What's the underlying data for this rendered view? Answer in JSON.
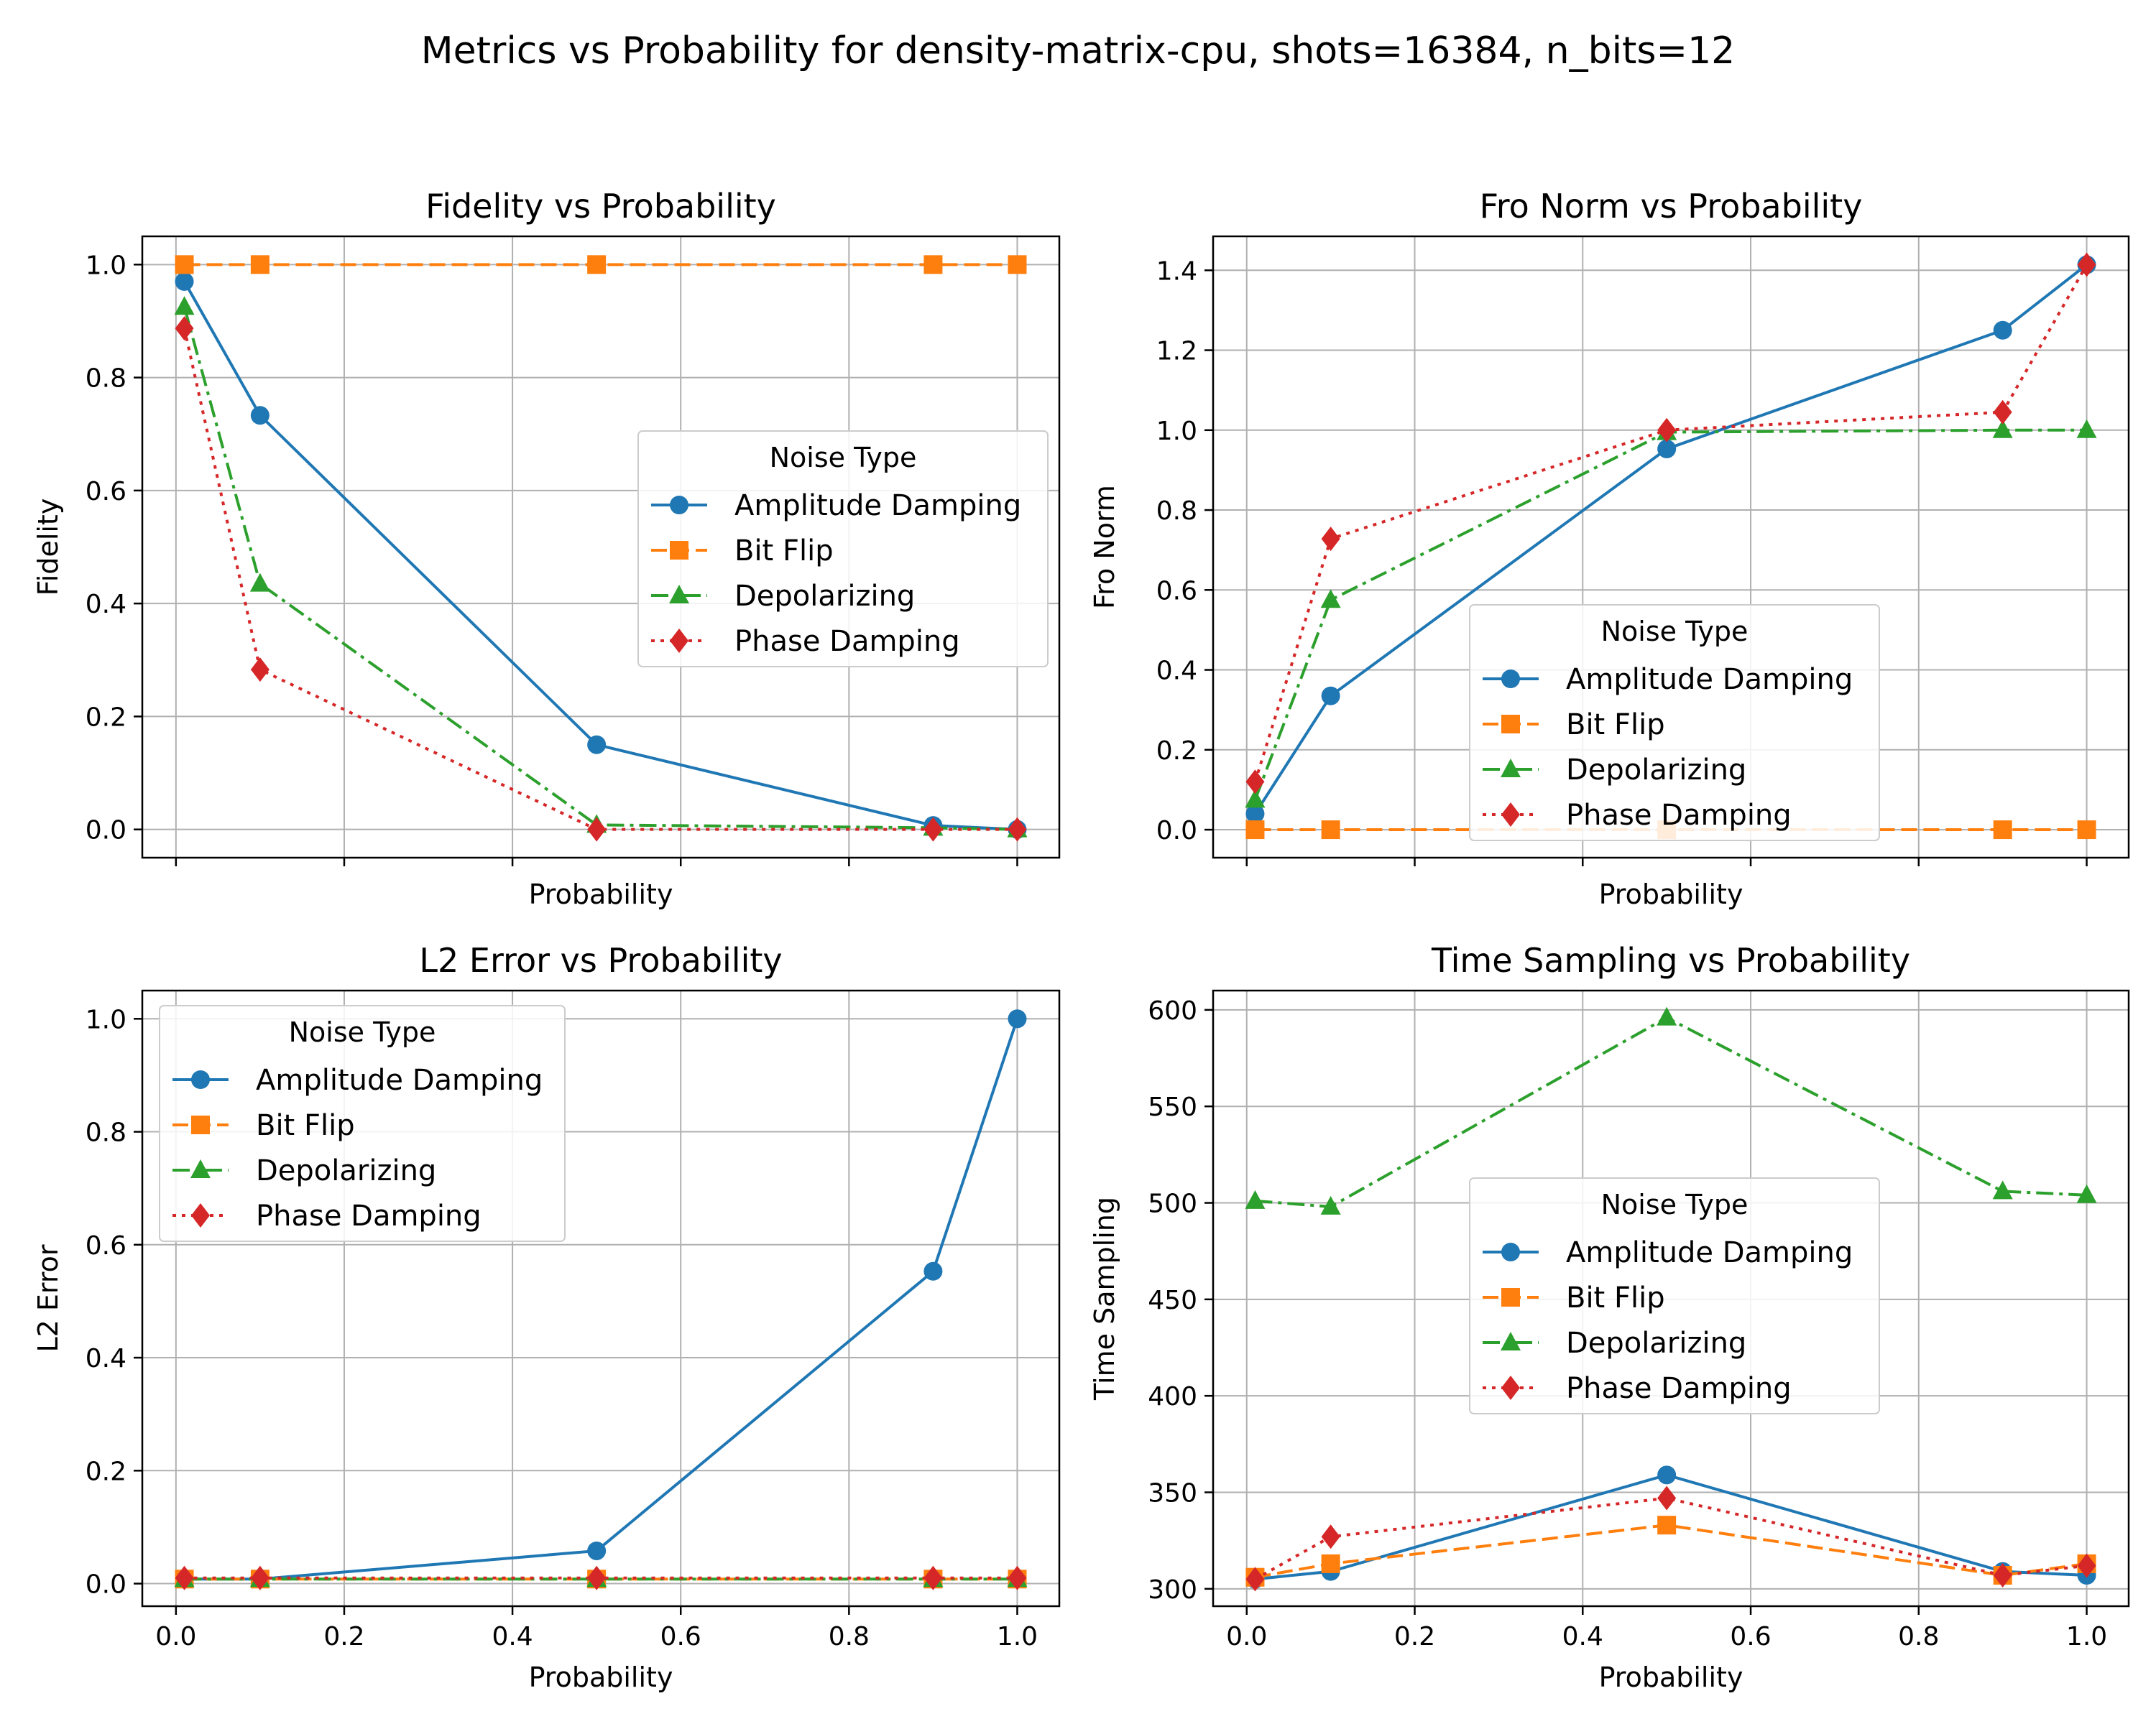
{
  "figure": {
    "suptitle": "Metrics vs Probability for density-matrix-cpu, shots=16384, n_bits=12"
  },
  "series_styles": {
    "Amplitude Damping": {
      "color": "#1f77b4",
      "marker": "circle",
      "dash": "solid"
    },
    "Bit Flip": {
      "color": "#ff7f0e",
      "marker": "square",
      "dash": "dashed"
    },
    "Depolarizing": {
      "color": "#2ca02c",
      "marker": "triangle",
      "dash": "dashdot"
    },
    "Phase Damping": {
      "color": "#d62728",
      "marker": "diamond",
      "dash": "dotted"
    }
  },
  "chart_data": [
    {
      "type": "line",
      "title": "Fidelity vs Probability",
      "xlabel": "Probability",
      "ylabel": "Fidelity",
      "xlim": [
        -0.04,
        1.05
      ],
      "ylim": [
        -0.05,
        1.05
      ],
      "xticks": [
        0.0,
        0.2,
        0.4,
        0.6,
        0.8,
        1.0
      ],
      "yticks": [
        0.0,
        0.2,
        0.4,
        0.6,
        0.8,
        1.0
      ],
      "xtick_labels_visible": false,
      "grid": true,
      "legend": {
        "title": "Noise Type",
        "placement": "center-right"
      },
      "x": [
        0.01,
        0.1,
        0.5,
        0.9,
        1.0
      ],
      "series": [
        {
          "name": "Amplitude Damping",
          "values": [
            0.97,
            0.733,
            0.15,
            0.007,
            0.0
          ]
        },
        {
          "name": "Bit Flip",
          "values": [
            1.0,
            1.0,
            1.0,
            1.0,
            1.0
          ]
        },
        {
          "name": "Depolarizing",
          "values": [
            0.925,
            0.435,
            0.008,
            0.003,
            0.0
          ]
        },
        {
          "name": "Phase Damping",
          "values": [
            0.887,
            0.283,
            0.0,
            0.0,
            0.0
          ]
        }
      ]
    },
    {
      "type": "line",
      "title": "Fro Norm vs Probability",
      "xlabel": "Probability",
      "ylabel": "Fro Norm",
      "xlim": [
        -0.04,
        1.05
      ],
      "ylim": [
        -0.07,
        1.485
      ],
      "xticks": [
        0.0,
        0.2,
        0.4,
        0.6,
        0.8,
        1.0
      ],
      "yticks": [
        0.0,
        0.2,
        0.4,
        0.6,
        0.8,
        1.0,
        1.2,
        1.4
      ],
      "xtick_labels_visible": false,
      "grid": true,
      "legend": {
        "title": "Noise Type",
        "placement": "lower-center"
      },
      "x": [
        0.01,
        0.1,
        0.5,
        0.9,
        1.0
      ],
      "series": [
        {
          "name": "Amplitude Damping",
          "values": [
            0.04,
            0.335,
            0.953,
            1.25,
            1.414
          ]
        },
        {
          "name": "Bit Flip",
          "values": [
            0.0,
            0.0,
            0.0,
            0.0,
            0.0
          ]
        },
        {
          "name": "Depolarizing",
          "values": [
            0.075,
            0.575,
            0.995,
            1.0,
            1.0
          ]
        },
        {
          "name": "Phase Damping",
          "values": [
            0.12,
            0.728,
            1.0,
            1.045,
            1.414
          ]
        }
      ]
    },
    {
      "type": "line",
      "title": "L2 Error vs Probability",
      "xlabel": "Probability",
      "ylabel": "L2 Error",
      "xlim": [
        -0.04,
        1.05
      ],
      "ylim": [
        -0.04,
        1.05
      ],
      "xticks": [
        0.0,
        0.2,
        0.4,
        0.6,
        0.8,
        1.0
      ],
      "yticks": [
        0.0,
        0.2,
        0.4,
        0.6,
        0.8,
        1.0
      ],
      "xtick_labels_visible": true,
      "grid": true,
      "legend": {
        "title": "Noise Type",
        "placement": "upper-left"
      },
      "x": [
        0.01,
        0.1,
        0.5,
        0.9,
        1.0
      ],
      "series": [
        {
          "name": "Amplitude Damping",
          "values": [
            0.008,
            0.008,
            0.058,
            0.553,
            1.0
          ]
        },
        {
          "name": "Bit Flip",
          "values": [
            0.008,
            0.008,
            0.008,
            0.008,
            0.008
          ]
        },
        {
          "name": "Depolarizing",
          "values": [
            0.008,
            0.008,
            0.008,
            0.008,
            0.008
          ]
        },
        {
          "name": "Phase Damping",
          "values": [
            0.01,
            0.01,
            0.01,
            0.01,
            0.01
          ]
        }
      ]
    },
    {
      "type": "line",
      "title": "Time Sampling vs Probability",
      "xlabel": "Probability",
      "ylabel": "Time Sampling",
      "xlim": [
        -0.04,
        1.05
      ],
      "ylim": [
        291,
        610
      ],
      "xticks": [
        0.0,
        0.2,
        0.4,
        0.6,
        0.8,
        1.0
      ],
      "yticks": [
        300,
        350,
        400,
        450,
        500,
        550,
        600
      ],
      "xtick_labels_visible": true,
      "grid": true,
      "legend": {
        "title": "Noise Type",
        "placement": "center"
      },
      "x": [
        0.01,
        0.1,
        0.5,
        0.9,
        1.0
      ],
      "series": [
        {
          "name": "Amplitude Damping",
          "values": [
            305,
            309,
            359,
            309,
            307
          ]
        },
        {
          "name": "Bit Flip",
          "values": [
            306,
            313,
            333,
            307,
            313
          ]
        },
        {
          "name": "Depolarizing",
          "values": [
            501,
            498,
            596,
            506,
            504
          ]
        },
        {
          "name": "Phase Damping",
          "values": [
            305,
            327,
            347,
            307,
            312
          ]
        }
      ]
    }
  ]
}
